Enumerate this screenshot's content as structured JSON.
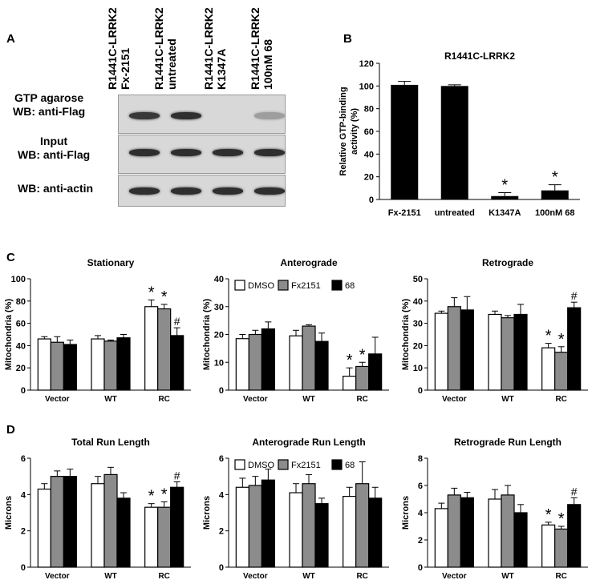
{
  "panels": {
    "A": "A",
    "B": "B",
    "C": "C",
    "D": "D"
  },
  "blot": {
    "lanes": [
      "R1441C-LRRK2 Fx-2151",
      "R1441C-LRRK2 untreated",
      "R1441C-LRRK2 K1347A",
      "R1441C-LRRK2 100nM 68"
    ],
    "lane_lines": [
      [
        "R1441C-LRRK2",
        "Fx-2151"
      ],
      [
        "R1441C-LRRK2",
        "untreated"
      ],
      [
        "R1441C-LRRK2",
        "K1347A"
      ],
      [
        "R1441C-LRRK2",
        "100nM 68"
      ]
    ],
    "rows": [
      {
        "label_lines": [
          "GTP agarose",
          "WB: anti-Flag"
        ],
        "band_intensity": [
          0.85,
          0.9,
          0.0,
          0.25
        ]
      },
      {
        "label_lines": [
          "Input",
          "WB: anti-Flag"
        ],
        "band_intensity": [
          0.9,
          0.9,
          0.9,
          0.9
        ]
      },
      {
        "label_lines": [
          "WB: anti-actin"
        ],
        "band_intensity": [
          0.9,
          0.9,
          0.9,
          0.9
        ]
      }
    ]
  },
  "chart_data": [
    {
      "id": "B",
      "type": "bar",
      "title": "R1441C-LRRK2",
      "ylabel": "Relative GTP-binding activity (%)",
      "ylabel_lines": [
        "Relative GTP-binding",
        "activity (%)"
      ],
      "xlabel": "",
      "ylim": [
        0,
        120
      ],
      "yticks": [
        0,
        20,
        40,
        60,
        80,
        100,
        120
      ],
      "categories": [
        "Fx-2151",
        "untreated",
        "K1347A",
        "100nM 68"
      ],
      "values": [
        101,
        100,
        3,
        8
      ],
      "errors": [
        3,
        1,
        3,
        5
      ],
      "annotations": [
        "",
        "",
        "*",
        "*"
      ]
    },
    {
      "id": "C1",
      "type": "bar",
      "title": "Stationary",
      "ylabel": "Mitochondria (%)",
      "ylim": [
        0,
        100
      ],
      "yticks": [
        0,
        20,
        40,
        60,
        80,
        100
      ],
      "categories": [
        "Vector",
        "WT",
        "RC"
      ],
      "legend": false,
      "series": [
        {
          "name": "DMSO",
          "values": [
            46,
            46,
            75
          ],
          "errors": [
            2,
            3,
            6
          ],
          "annotations": [
            "",
            "",
            "*"
          ]
        },
        {
          "name": "Fx2151",
          "values": [
            43,
            44,
            73
          ],
          "errors": [
            5,
            1,
            4
          ],
          "annotations": [
            "",
            "",
            "*"
          ]
        },
        {
          "name": "68",
          "values": [
            41,
            47,
            49
          ],
          "errors": [
            4,
            3,
            7
          ],
          "annotations": [
            "",
            "",
            "#"
          ]
        }
      ]
    },
    {
      "id": "C2",
      "type": "bar",
      "title": "Anterograde",
      "ylabel": "Mitochondria (%)",
      "ylim": [
        0,
        40
      ],
      "yticks": [
        0,
        10,
        20,
        30,
        40
      ],
      "categories": [
        "Vector",
        "WT",
        "RC"
      ],
      "legend": true,
      "legend_placement": "top",
      "series": [
        {
          "name": "DMSO",
          "values": [
            18.5,
            19.5,
            5
          ],
          "errors": [
            1.5,
            2,
            3
          ],
          "annotations": [
            "",
            "",
            "*"
          ]
        },
        {
          "name": "Fx2151",
          "values": [
            20,
            23,
            8.5
          ],
          "errors": [
            1.5,
            0.5,
            1.5
          ],
          "annotations": [
            "",
            "",
            "*"
          ]
        },
        {
          "name": "68",
          "values": [
            22,
            17.5,
            13
          ],
          "errors": [
            2.5,
            3,
            6
          ],
          "annotations": [
            "",
            "",
            ""
          ]
        }
      ]
    },
    {
      "id": "C3",
      "type": "bar",
      "title": "Retrograde",
      "ylabel": "Mitochondria (%)",
      "ylim": [
        0,
        50
      ],
      "yticks": [
        0,
        10,
        20,
        30,
        40,
        50
      ],
      "categories": [
        "Vector",
        "WT",
        "RC"
      ],
      "legend": false,
      "series": [
        {
          "name": "DMSO",
          "values": [
            34.5,
            34,
            19
          ],
          "errors": [
            1,
            1.5,
            2
          ],
          "annotations": [
            "",
            "",
            "*"
          ]
        },
        {
          "name": "Fx2151",
          "values": [
            37.5,
            32.5,
            17
          ],
          "errors": [
            4,
            1,
            2.5
          ],
          "annotations": [
            "",
            "",
            "*"
          ]
        },
        {
          "name": "68",
          "values": [
            36,
            34,
            37
          ],
          "errors": [
            6,
            4.5,
            2.5
          ],
          "annotations": [
            "",
            "",
            "#"
          ]
        }
      ]
    },
    {
      "id": "D1",
      "type": "bar",
      "title": "Total Run Length",
      "ylabel": "Microns",
      "ylim": [
        0,
        6
      ],
      "yticks": [
        0,
        2,
        4,
        6
      ],
      "categories": [
        "Vector",
        "WT",
        "RC"
      ],
      "legend": false,
      "series": [
        {
          "name": "DMSO",
          "values": [
            4.3,
            4.6,
            3.3
          ],
          "errors": [
            0.3,
            0.4,
            0.2
          ],
          "annotations": [
            "",
            "",
            "*"
          ]
        },
        {
          "name": "Fx2151",
          "values": [
            5.0,
            5.1,
            3.3
          ],
          "errors": [
            0.3,
            0.4,
            0.3
          ],
          "annotations": [
            "",
            "",
            "*"
          ]
        },
        {
          "name": "68",
          "values": [
            5.0,
            3.8,
            4.4
          ],
          "errors": [
            0.4,
            0.3,
            0.3
          ],
          "annotations": [
            "",
            "",
            "#"
          ]
        }
      ]
    },
    {
      "id": "D2",
      "type": "bar",
      "title": "Anterograde Run Length",
      "ylabel": "Microns",
      "ylim": [
        0,
        6
      ],
      "yticks": [
        0,
        2,
        4,
        6
      ],
      "categories": [
        "Vector",
        "WT",
        "RC"
      ],
      "legend": true,
      "legend_placement": "top",
      "series": [
        {
          "name": "DMSO",
          "values": [
            4.4,
            4.1,
            3.9
          ],
          "errors": [
            0.5,
            0.5,
            0.5
          ],
          "annotations": [
            "",
            "",
            ""
          ]
        },
        {
          "name": "Fx2151",
          "values": [
            4.5,
            4.6,
            4.6
          ],
          "errors": [
            0.5,
            0.5,
            1.2
          ],
          "annotations": [
            "",
            "",
            ""
          ]
        },
        {
          "name": "68",
          "values": [
            4.8,
            3.5,
            3.8
          ],
          "errors": [
            0.6,
            0.3,
            0.6
          ],
          "annotations": [
            "",
            "",
            ""
          ]
        }
      ]
    },
    {
      "id": "D3",
      "type": "bar",
      "title": "Retrograde Run Length",
      "ylabel": "Microns",
      "ylim": [
        0,
        8
      ],
      "yticks": [
        0,
        2,
        4,
        6,
        8
      ],
      "categories": [
        "Vector",
        "WT",
        "RC"
      ],
      "legend": false,
      "series": [
        {
          "name": "DMSO",
          "values": [
            4.3,
            5.0,
            3.1
          ],
          "errors": [
            0.4,
            0.7,
            0.2
          ],
          "annotations": [
            "",
            "",
            "*"
          ]
        },
        {
          "name": "Fx2151",
          "values": [
            5.3,
            5.3,
            2.8
          ],
          "errors": [
            0.5,
            0.7,
            0.2
          ],
          "annotations": [
            "",
            "",
            "*"
          ]
        },
        {
          "name": "68",
          "values": [
            5.1,
            4.0,
            4.6
          ],
          "errors": [
            0.4,
            0.6,
            0.5
          ],
          "annotations": [
            "",
            "",
            "#"
          ]
        }
      ]
    }
  ],
  "colors": {
    "DMSO": "#ffffff",
    "Fx2151": "#8c8c8c",
    "68": "#000000",
    "bar_B": "#000000"
  }
}
